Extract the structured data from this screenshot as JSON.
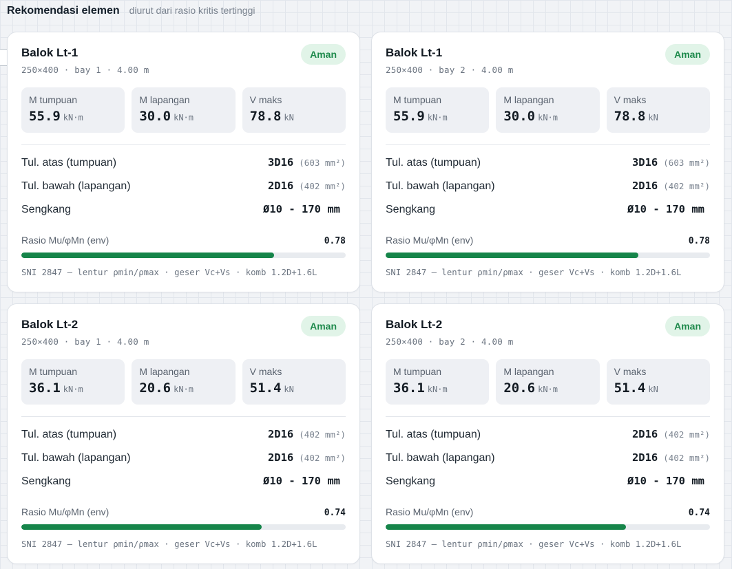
{
  "header": {
    "title": "Rekomendasi elemen",
    "subtitle": "diurut dari rasio kritis tertinggi"
  },
  "colors": {
    "accent_green": "#16854a",
    "badge_bg": "#e1f4e8",
    "badge_text": "#1e8a4c"
  },
  "cards": [
    {
      "title": "Balok Lt-1",
      "subtitle": "250×400 · bay 1 · 4.00 m",
      "status": "Aman",
      "stats": [
        {
          "label": "M tumpuan",
          "value": "55.9",
          "unit": "kN·m"
        },
        {
          "label": "M lapangan",
          "value": "30.0",
          "unit": "kN·m"
        },
        {
          "label": "V maks",
          "value": "78.8",
          "unit": "kN"
        }
      ],
      "rows": [
        {
          "label": "Tul. atas (tumpuan)",
          "value": "3D16",
          "area": "(603 mm²)"
        },
        {
          "label": "Tul. bawah (lapangan)",
          "value": "2D16",
          "area": "(402 mm²)"
        },
        {
          "label": "Sengkang",
          "value": "Ø10 - 170 mm",
          "area": ""
        }
      ],
      "ratio_label": "Rasio Mu/φMn (env)",
      "ratio_text": "0.78",
      "ratio": 0.78,
      "footnote": "SNI 2847 — lentur ρmin/ρmax · geser Vc+Vs · komb 1.2D+1.6L"
    },
    {
      "title": "Balok Lt-1",
      "subtitle": "250×400 · bay 2 · 4.00 m",
      "status": "Aman",
      "stats": [
        {
          "label": "M tumpuan",
          "value": "55.9",
          "unit": "kN·m"
        },
        {
          "label": "M lapangan",
          "value": "30.0",
          "unit": "kN·m"
        },
        {
          "label": "V maks",
          "value": "78.8",
          "unit": "kN"
        }
      ],
      "rows": [
        {
          "label": "Tul. atas (tumpuan)",
          "value": "3D16",
          "area": "(603 mm²)"
        },
        {
          "label": "Tul. bawah (lapangan)",
          "value": "2D16",
          "area": "(402 mm²)"
        },
        {
          "label": "Sengkang",
          "value": "Ø10 - 170 mm",
          "area": ""
        }
      ],
      "ratio_label": "Rasio Mu/φMn (env)",
      "ratio_text": "0.78",
      "ratio": 0.78,
      "footnote": "SNI 2847 — lentur ρmin/ρmax · geser Vc+Vs · komb 1.2D+1.6L"
    },
    {
      "title": "Balok Lt-2",
      "subtitle": "250×400 · bay 1 · 4.00 m",
      "status": "Aman",
      "stats": [
        {
          "label": "M tumpuan",
          "value": "36.1",
          "unit": "kN·m"
        },
        {
          "label": "M lapangan",
          "value": "20.6",
          "unit": "kN·m"
        },
        {
          "label": "V maks",
          "value": "51.4",
          "unit": "kN"
        }
      ],
      "rows": [
        {
          "label": "Tul. atas (tumpuan)",
          "value": "2D16",
          "area": "(402 mm²)"
        },
        {
          "label": "Tul. bawah (lapangan)",
          "value": "2D16",
          "area": "(402 mm²)"
        },
        {
          "label": "Sengkang",
          "value": "Ø10 - 170 mm",
          "area": ""
        }
      ],
      "ratio_label": "Rasio Mu/φMn (env)",
      "ratio_text": "0.74",
      "ratio": 0.74,
      "footnote": "SNI 2847 — lentur ρmin/ρmax · geser Vc+Vs · komb 1.2D+1.6L"
    },
    {
      "title": "Balok Lt-2",
      "subtitle": "250×400 · bay 2 · 4.00 m",
      "status": "Aman",
      "stats": [
        {
          "label": "M tumpuan",
          "value": "36.1",
          "unit": "kN·m"
        },
        {
          "label": "M lapangan",
          "value": "20.6",
          "unit": "kN·m"
        },
        {
          "label": "V maks",
          "value": "51.4",
          "unit": "kN"
        }
      ],
      "rows": [
        {
          "label": "Tul. atas (tumpuan)",
          "value": "2D16",
          "area": "(402 mm²)"
        },
        {
          "label": "Tul. bawah (lapangan)",
          "value": "2D16",
          "area": "(402 mm²)"
        },
        {
          "label": "Sengkang",
          "value": "Ø10 - 170 mm",
          "area": ""
        }
      ],
      "ratio_label": "Rasio Mu/φMn (env)",
      "ratio_text": "0.74",
      "ratio": 0.74,
      "footnote": "SNI 2847 — lentur ρmin/ρmax · geser Vc+Vs · komb 1.2D+1.6L"
    }
  ]
}
